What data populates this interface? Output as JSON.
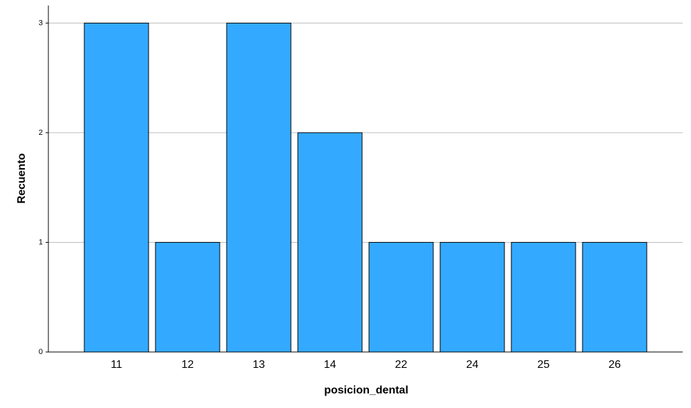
{
  "chart_data": {
    "type": "bar",
    "x_label": "posicion_dental",
    "y_label": "Recuento",
    "categories": [
      "11",
      "12",
      "13",
      "14",
      "22",
      "24",
      "25",
      "26"
    ],
    "values": [
      3,
      1,
      3,
      2,
      1,
      1,
      1,
      1
    ],
    "color": "#33aaff",
    "ylim": [
      0,
      3.16
    ],
    "yticks": [
      0,
      1,
      2,
      3
    ],
    "grid": true
  }
}
